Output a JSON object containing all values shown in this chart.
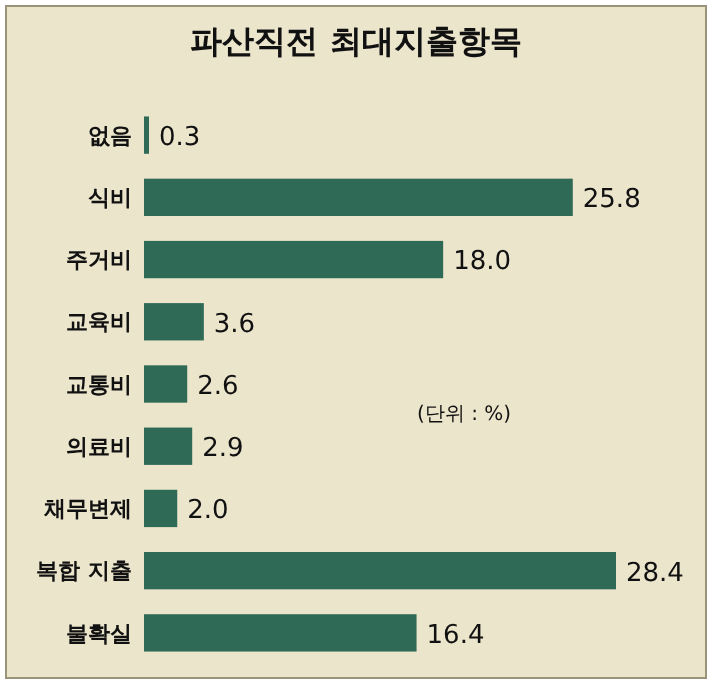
{
  "chart_data": {
    "type": "bar",
    "orientation": "horizontal",
    "title": "파산직전 최대지출항목",
    "categories": [
      "없음",
      "식비",
      "주거비",
      "교육비",
      "교통비",
      "의료비",
      "채무변제",
      "복합 지출",
      "불확실"
    ],
    "values": [
      0.3,
      25.8,
      18.0,
      3.6,
      2.6,
      2.9,
      2.0,
      28.4,
      16.4
    ],
    "value_labels": [
      "0.3",
      "25.8",
      "18.0",
      "3.6",
      "2.6",
      "2.9",
      "2.0",
      "28.4",
      "16.4"
    ],
    "color": "#2f6a56",
    "annotations": [
      "(단위 : %)"
    ]
  }
}
